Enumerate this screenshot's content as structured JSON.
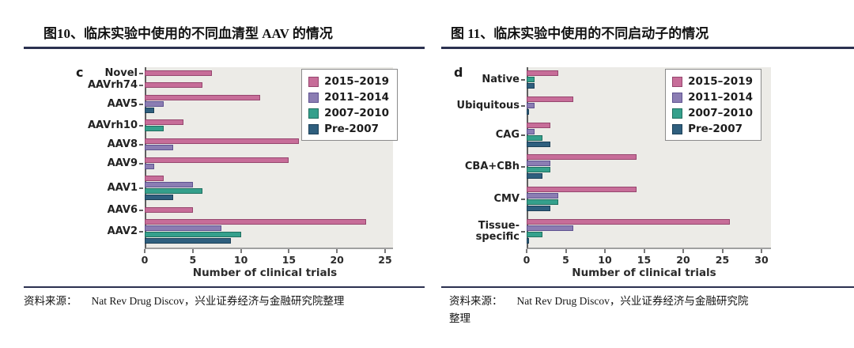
{
  "panels": [
    {
      "title": "图10、临床实验中使用的不同血清型 AAV 的情况",
      "source_label": "资料来源：",
      "source_text": "Nat Rev Drug Discov，兴业证券经济与金融研究院整理"
    },
    {
      "title": "图 11、临床实验中使用的不同启动子的情况",
      "source_label": "资料来源：",
      "source_text": "Nat Rev Drug Discov，兴业证券经济与金融研究院\n整理"
    }
  ],
  "series": [
    {
      "name": "2015–2019",
      "fill": "#C76D99",
      "border": "#96466E"
    },
    {
      "name": "2011–2014",
      "fill": "#8B7DB3",
      "border": "#5E5290"
    },
    {
      "name": "2007–2010",
      "fill": "#35A08C",
      "border": "#1F6F5F"
    },
    {
      "name": "Pre-2007",
      "fill": "#2F5F7E",
      "border": "#1C4058"
    }
  ],
  "colors": {
    "plot_background": "#ECEBE7",
    "axis": "#5F5F5F",
    "title_rule": "#2B3150",
    "source_rule": "#2B3150"
  },
  "chart_data": [
    {
      "type": "bar",
      "orientation": "horizontal",
      "panel_letter": "c",
      "xlabel": "Number of clinical trials",
      "xlim": [
        0,
        25
      ],
      "xticks": [
        0,
        5,
        10,
        15,
        20,
        25
      ],
      "grid": false,
      "legend_position": "top-right",
      "legend_entries": [
        "2015–2019",
        "2011–2014",
        "2007–2010",
        "Pre-2007"
      ],
      "rows": [
        {
          "category": "Novel",
          "bars": [
            {
              "series": "2015–2019",
              "value": 7
            }
          ]
        },
        {
          "category": "AAVrh74",
          "bars": [
            {
              "series": "2015–2019",
              "value": 6
            }
          ]
        },
        {
          "category": "AAV5",
          "bars": [
            {
              "series": "2015–2019",
              "value": 12
            },
            {
              "series": "2011–2014",
              "value": 2
            },
            {
              "series": "Pre-2007",
              "value": 1
            }
          ]
        },
        {
          "category": "AAVrh10",
          "bars": [
            {
              "series": "2015–2019",
              "value": 4
            },
            {
              "series": "2007–2010",
              "value": 2
            }
          ]
        },
        {
          "category": "AAV8",
          "bars": [
            {
              "series": "2015–2019",
              "value": 16
            },
            {
              "series": "2011–2014",
              "value": 3
            }
          ]
        },
        {
          "category": "AAV9",
          "bars": [
            {
              "series": "2015–2019",
              "value": 15
            },
            {
              "series": "2011–2014",
              "value": 1
            }
          ]
        },
        {
          "category": "AAV1",
          "bars": [
            {
              "series": "2015–2019",
              "value": 2
            },
            {
              "series": "2011–2014",
              "value": 5
            },
            {
              "series": "2007–2010",
              "value": 6
            },
            {
              "series": "Pre-2007",
              "value": 3
            }
          ]
        },
        {
          "category": "AAV6",
          "bars": [
            {
              "series": "2015–2019",
              "value": 5
            }
          ]
        },
        {
          "category": "AAV2",
          "bars": [
            {
              "series": "2015–2019",
              "value": 23
            },
            {
              "series": "2011–2014",
              "value": 8
            },
            {
              "series": "2007–2010",
              "value": 10
            },
            {
              "series": "Pre-2007",
              "value": 9
            }
          ]
        }
      ]
    },
    {
      "type": "bar",
      "orientation": "horizontal",
      "panel_letter": "d",
      "xlabel": "Number of clinical trials",
      "xlim": [
        0,
        30
      ],
      "xticks": [
        0,
        5,
        10,
        15,
        20,
        25,
        30
      ],
      "grid": false,
      "legend_position": "top-right",
      "legend_entries": [
        "2015–2019",
        "2011–2014",
        "2007–2010",
        "Pre-2007"
      ],
      "rows": [
        {
          "category": "Native",
          "bars": [
            {
              "series": "2015–2019",
              "value": 4
            },
            {
              "series": "2007–2010",
              "value": 1
            },
            {
              "series": "Pre-2007",
              "value": 1
            }
          ]
        },
        {
          "category": "Ubiquitous",
          "bars": [
            {
              "series": "2015–2019",
              "value": 6
            },
            {
              "series": "2011–2014",
              "value": 1
            },
            {
              "series": "Pre-2007",
              "value": 0.3
            }
          ]
        },
        {
          "category": "CAG",
          "bars": [
            {
              "series": "2015–2019",
              "value": 3
            },
            {
              "series": "2011–2014",
              "value": 1
            },
            {
              "series": "2007–2010",
              "value": 2
            },
            {
              "series": "Pre-2007",
              "value": 3
            }
          ]
        },
        {
          "category": "CBA+CBh",
          "bars": [
            {
              "series": "2015–2019",
              "value": 14
            },
            {
              "series": "2011–2014",
              "value": 3
            },
            {
              "series": "2007–2010",
              "value": 3
            },
            {
              "series": "Pre-2007",
              "value": 2
            }
          ]
        },
        {
          "category": "CMV",
          "bars": [
            {
              "series": "2015–2019",
              "value": 14
            },
            {
              "series": "2011–2014",
              "value": 4
            },
            {
              "series": "2007–2010",
              "value": 4
            },
            {
              "series": "Pre-2007",
              "value": 3
            }
          ]
        },
        {
          "category": "Tissue-\nspecific",
          "bars": [
            {
              "series": "2015–2019",
              "value": 26
            },
            {
              "series": "2011–2014",
              "value": 6
            },
            {
              "series": "2007–2010",
              "value": 2
            },
            {
              "series": "Pre-2007",
              "value": 0.3
            }
          ]
        }
      ]
    }
  ]
}
